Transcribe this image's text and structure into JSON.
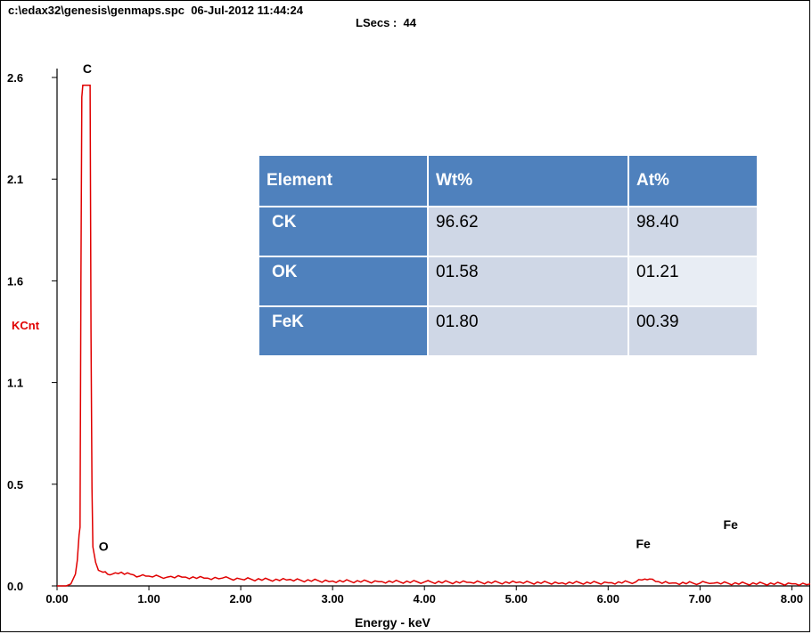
{
  "header": {
    "file_line": "c:\\edax32\\genesis\\genmaps.spc  06-Jul-2012 11:44:24",
    "lsecs_line": "LSecs :  44"
  },
  "table": {
    "headers": [
      "Element",
      "Wt%",
      "At%"
    ],
    "rows": [
      {
        "element": "CK",
        "wt": "96.62",
        "at": "98.40"
      },
      {
        "element": "OK",
        "wt": "01.58",
        "at": "01.21"
      },
      {
        "element": "FeK",
        "wt": "01.80",
        "at": "00.39"
      }
    ]
  },
  "colors": {
    "spectrum": "#e00000",
    "table_header": "#4f81bd",
    "table_cell": "#cfd7e6"
  },
  "chart_data": {
    "type": "line",
    "title": "",
    "xlabel": "Energy - keV",
    "ylabel": "KCnt",
    "xlim": [
      0,
      8.2
    ],
    "ylim": [
      0,
      2.6
    ],
    "x_ticks": [
      "0.00",
      "1.00",
      "2.00",
      "3.00",
      "4.00",
      "5.00",
      "6.00",
      "7.00",
      "8.00"
    ],
    "x_tick_values": [
      0,
      1,
      2,
      3,
      4,
      5,
      6,
      7,
      8
    ],
    "y_ticks": [
      "0.0",
      "0.5",
      "1.1",
      "1.6",
      "2.1",
      "2.6"
    ],
    "y_tick_values": [
      0.0,
      0.52,
      1.04,
      1.56,
      2.08,
      2.6
    ],
    "peak_labels": [
      {
        "label": "C",
        "x": 0.28,
        "y": 2.6
      },
      {
        "label": "O",
        "x": 0.26,
        "y": 0.07
      },
      {
        "label": "Fe",
        "x": 6.4,
        "y": 0.07
      },
      {
        "label": "Fe",
        "x": 7.06,
        "y": 0.1
      }
    ],
    "series": [
      {
        "points": [
          [
            0.0,
            0.0
          ],
          [
            0.1,
            0.0
          ],
          [
            0.15,
            0.01
          ],
          [
            0.2,
            0.06
          ],
          [
            0.22,
            0.13
          ],
          [
            0.24,
            0.26
          ],
          [
            0.25,
            0.3
          ],
          [
            0.26,
            1.56
          ],
          [
            0.27,
            2.5
          ],
          [
            0.28,
            2.56
          ],
          [
            0.36,
            2.56
          ],
          [
            0.37,
            1.3
          ],
          [
            0.38,
            0.5
          ],
          [
            0.39,
            0.2
          ],
          [
            0.42,
            0.12
          ],
          [
            0.45,
            0.08
          ],
          [
            0.5,
            0.07
          ],
          [
            0.55,
            0.06
          ],
          [
            0.6,
            0.06
          ],
          [
            0.7,
            0.07
          ],
          [
            0.8,
            0.06
          ],
          [
            0.9,
            0.05
          ],
          [
            1.0,
            0.05
          ],
          [
            1.2,
            0.045
          ],
          [
            1.4,
            0.045
          ],
          [
            1.6,
            0.04
          ],
          [
            1.8,
            0.04
          ],
          [
            2.0,
            0.035
          ],
          [
            2.5,
            0.03
          ],
          [
            3.0,
            0.025
          ],
          [
            3.5,
            0.022
          ],
          [
            4.0,
            0.02
          ],
          [
            4.5,
            0.018
          ],
          [
            5.0,
            0.017
          ],
          [
            5.5,
            0.016
          ],
          [
            6.0,
            0.016
          ],
          [
            6.3,
            0.02
          ],
          [
            6.4,
            0.035
          ],
          [
            6.45,
            0.035
          ],
          [
            6.55,
            0.022
          ],
          [
            6.7,
            0.015
          ],
          [
            7.0,
            0.014
          ],
          [
            7.06,
            0.018
          ],
          [
            7.15,
            0.014
          ],
          [
            7.5,
            0.012
          ],
          [
            8.0,
            0.011
          ],
          [
            8.2,
            0.01
          ]
        ]
      }
    ]
  }
}
